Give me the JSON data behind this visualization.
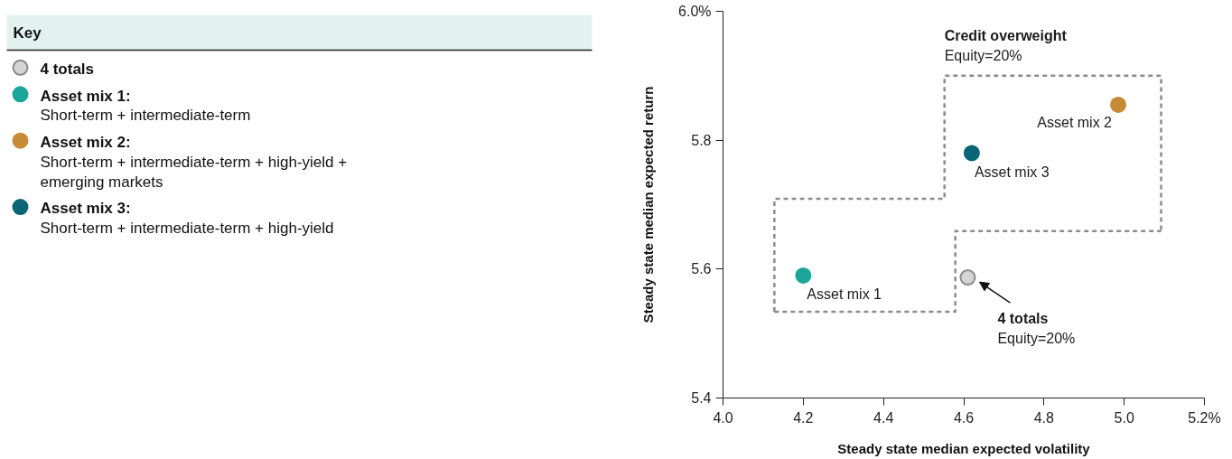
{
  "chart_data": {
    "type": "scatter",
    "xlabel": "Steady state median expected volatility",
    "ylabel": "Steady state median expected return",
    "legend_title": "Key",
    "legend": "left",
    "marker": "circle",
    "grid": false,
    "xlim": [
      4.0,
      5.2
    ],
    "xticks": [
      {
        "value": 4,
        "label": "4.0"
      },
      4.2,
      4.4,
      4.6,
      4.8,
      {
        "value": 5,
        "label": "5.0"
      },
      {
        "value": 5.2,
        "label": "5.2%"
      }
    ],
    "ylim": [
      5.4,
      6.0
    ],
    "yticks": [
      5.4,
      5.6,
      5.8,
      {
        "value": 6.0,
        "label": "6.0%"
      }
    ],
    "series": [
      {
        "name": "4 totals",
        "color": "#d4d4d4",
        "x": [
          4.61
        ],
        "values": [
          5.587
        ]
      },
      {
        "name": "Asset mix 1: Short-term + intermediate-term",
        "color": "#1aa79a",
        "x": [
          4.2
        ],
        "values": [
          5.59
        ]
      },
      {
        "name": "Asset mix 2: Short-term + intermediate-term + high-yield + emerging markets",
        "color": "#c68b34",
        "x": [
          4.985
        ],
        "values": [
          5.855
        ]
      },
      {
        "name": "Asset mix 3: Short-term + intermediate-term + high-yield",
        "color": "#0a6577",
        "x": [
          4.62
        ],
        "values": [
          5.78
        ]
      },
      {
        "type": "line",
        "line_style": "dashed",
        "marker": "none",
        "color": "#8c8c8c",
        "x": [
          4.128,
          4.128,
          4.552,
          4.552,
          5.092,
          5.092
        ],
        "values": [
          5.534,
          5.709,
          5.709,
          5.9,
          5.9,
          5.659
        ]
      },
      {
        "type": "line",
        "line_style": "dashed",
        "marker": "none",
        "color": "#8c8c8c",
        "x": [
          4.128,
          4.579,
          4.579,
          5.092
        ],
        "values": [
          5.534,
          5.534,
          5.659,
          5.659
        ]
      }
    ],
    "annotations": [
      {
        "text": "Asset mix 1",
        "x": 4.2,
        "y": 5.59
      },
      {
        "text": "Asset mix 2",
        "x": 4.985,
        "y": 5.855
      },
      {
        "text": "Asset mix 3",
        "x": 4.62,
        "y": 5.78
      },
      "4 totals",
      "Equity=20%",
      "Credit overweight",
      "Equity=20%"
    ]
  }
}
